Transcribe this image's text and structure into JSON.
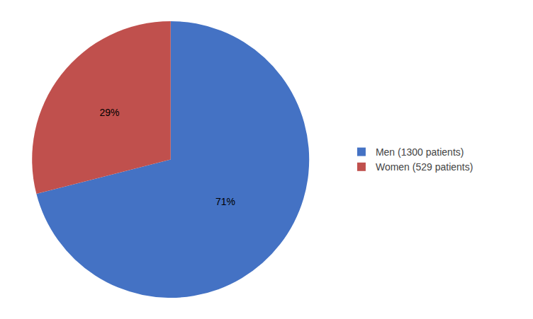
{
  "chart_data": {
    "type": "pie",
    "categories": [
      "Men (1300 patients)",
      "Women (529 patients)"
    ],
    "values": [
      71,
      29
    ],
    "value_labels": [
      "71%",
      "29%"
    ],
    "colors": [
      "#4472C4",
      "#C0504D"
    ],
    "data_labels": true,
    "legend": "right"
  }
}
